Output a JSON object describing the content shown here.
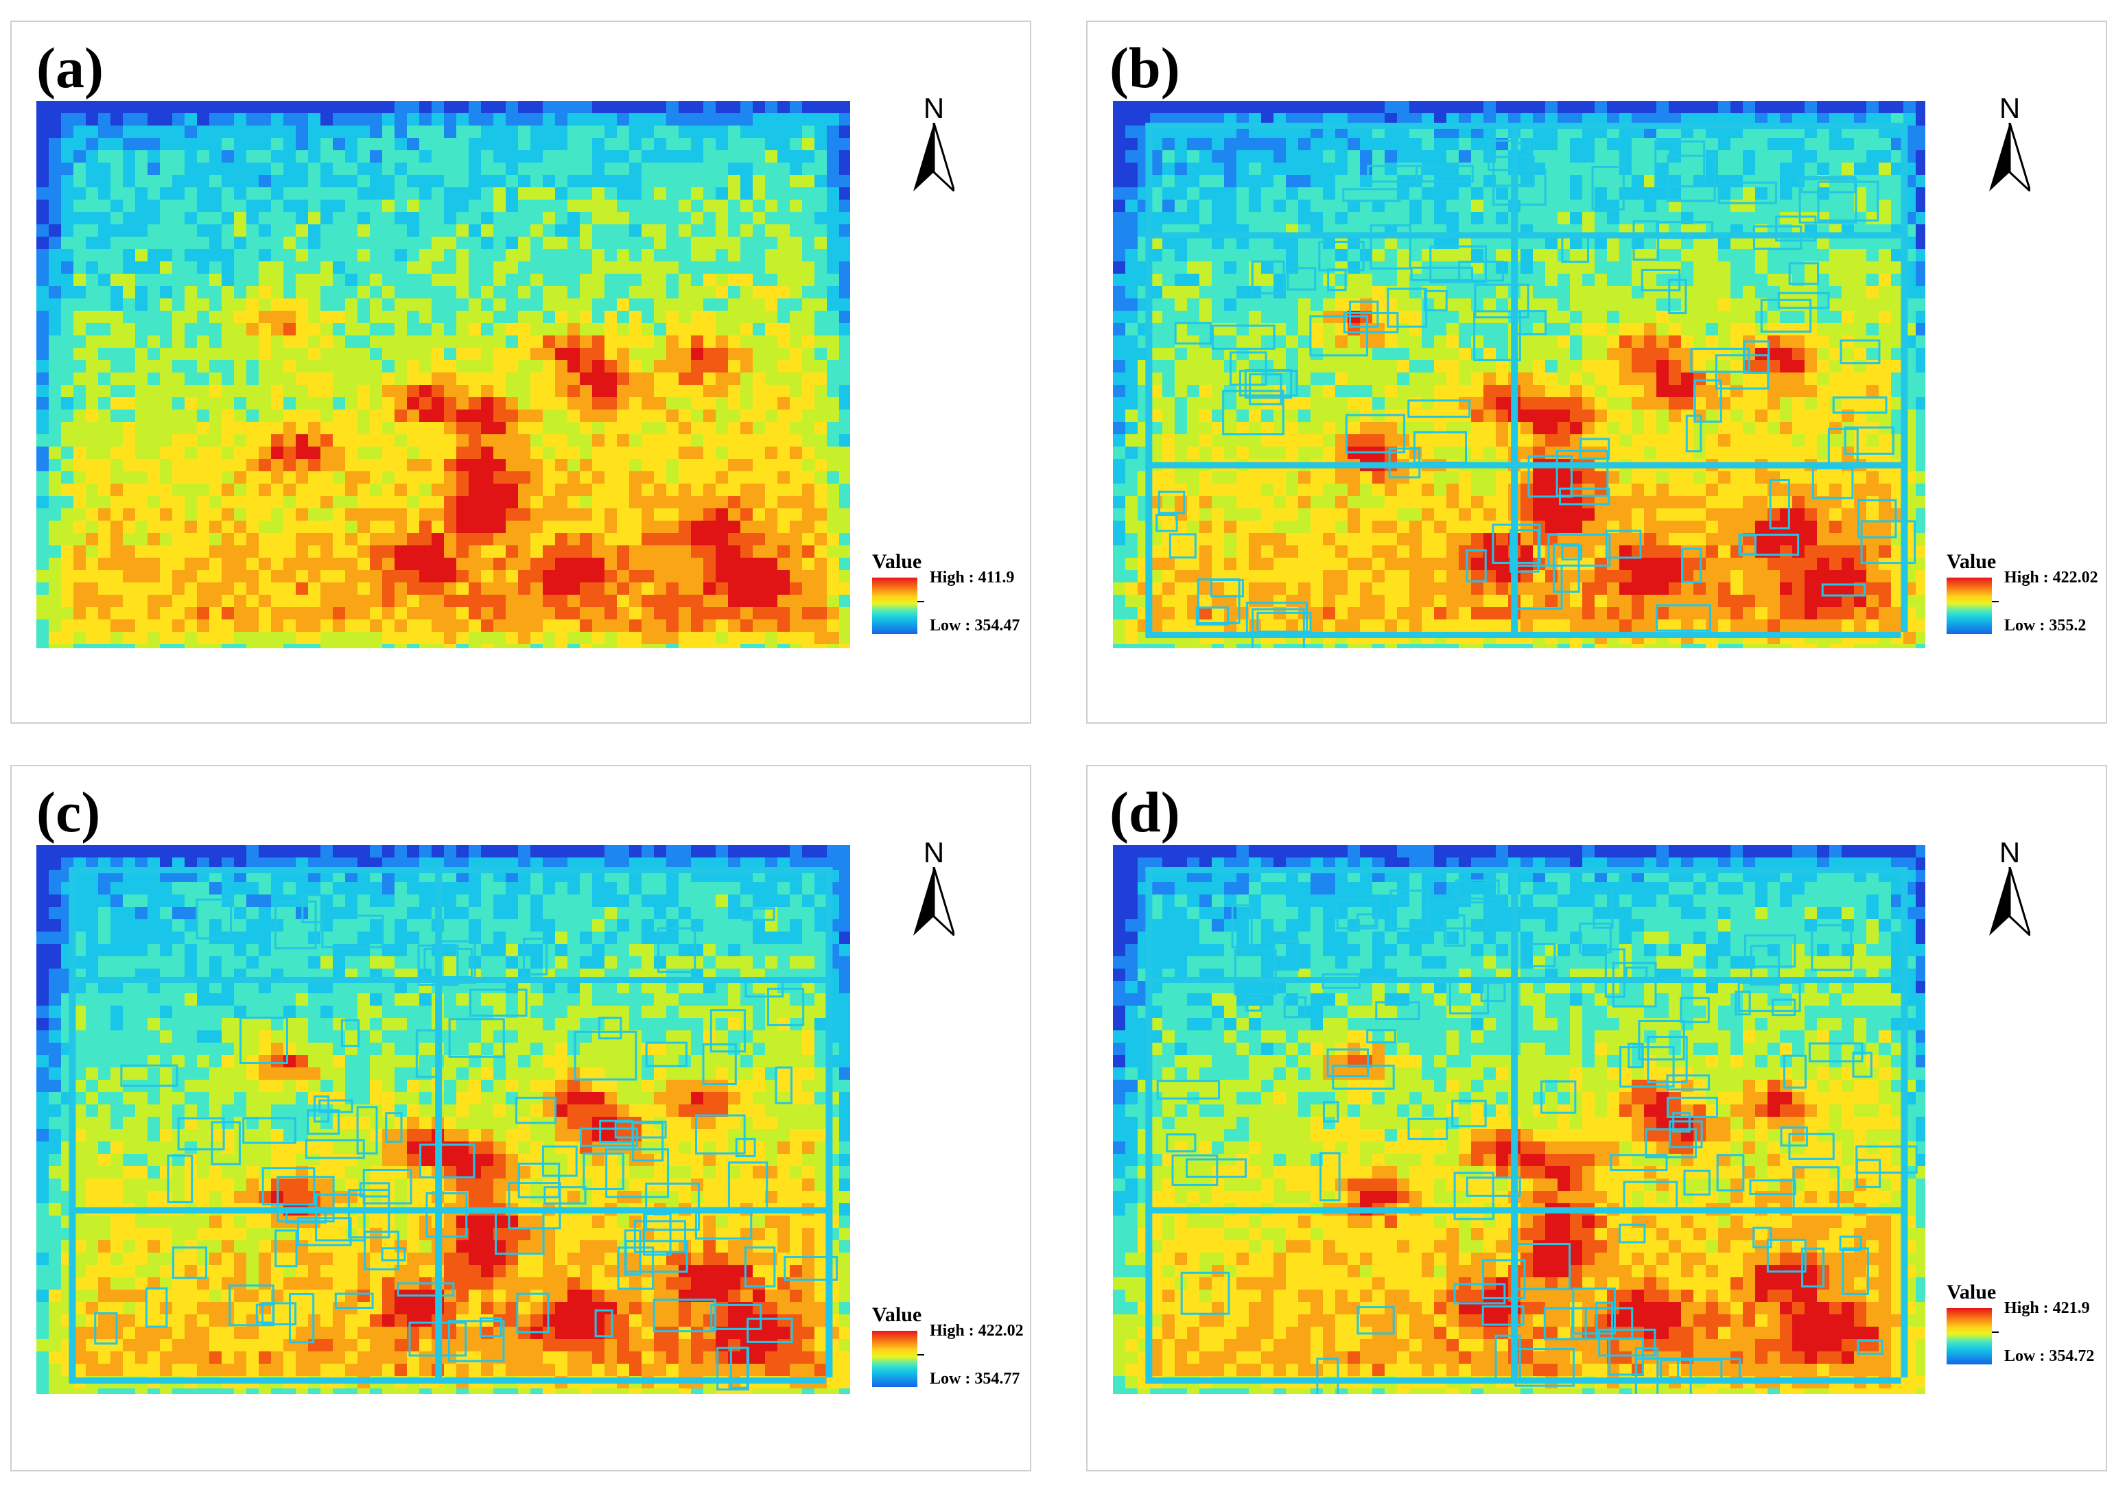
{
  "figure": {
    "panels": [
      {
        "label": "(a)",
        "legend_title": "Value",
        "high": "High : 411.9",
        "low": "Low : 354.47",
        "north": "N",
        "style": "smooth"
      },
      {
        "label": "(b)",
        "legend_title": "Value",
        "high": "High : 422.02",
        "low": "Low : 355.2",
        "north": "N",
        "style": "urban"
      },
      {
        "label": "(c)",
        "legend_title": "Value",
        "high": "High : 422.02",
        "low": "Low : 354.77",
        "north": "N",
        "style": "urban"
      },
      {
        "label": "(d)",
        "legend_title": "Value",
        "high": "High : 421.9",
        "low": "Low : 354.72",
        "north": "N",
        "style": "urban"
      }
    ],
    "colors": {
      "ramp": [
        "#1e3fd8",
        "#1e86f0",
        "#19c6ea",
        "#43e6c6",
        "#c8f02a",
        "#ffe21c",
        "#f9a515",
        "#f25a14",
        "#e01414"
      ],
      "border": "#cfcfcf"
    }
  }
}
